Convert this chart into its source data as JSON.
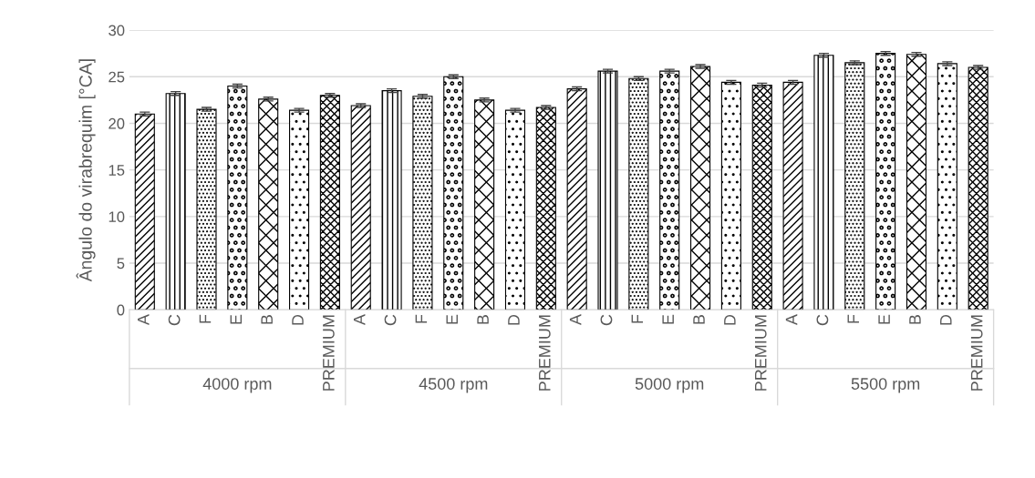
{
  "chart_data": {
    "type": "bar",
    "ylabel": "Ângulo do virabrequim [°CA]",
    "categories": [
      "A",
      "C",
      "F",
      "E",
      "B",
      "D",
      "PREMIUM",
      "A",
      "C",
      "F",
      "E",
      "B",
      "D",
      "PREMIUM",
      "A",
      "C",
      "F",
      "E",
      "B",
      "D",
      "PREMIUM",
      "A",
      "C",
      "F",
      "E",
      "B",
      "D",
      "PREMIUM"
    ],
    "values": [
      21.0,
      23.2,
      21.5,
      24.0,
      22.6,
      21.4,
      23.0,
      21.9,
      23.5,
      22.9,
      25.0,
      22.5,
      21.4,
      21.7,
      23.7,
      25.6,
      24.8,
      25.6,
      26.1,
      24.4,
      24.1,
      24.4,
      27.3,
      26.5,
      27.5,
      27.4,
      26.4,
      26.0
    ],
    "errors": [
      0.2,
      0.2,
      0.2,
      0.2,
      0.2,
      0.2,
      0.2,
      0.2,
      0.2,
      0.2,
      0.2,
      0.2,
      0.2,
      0.2,
      0.2,
      0.2,
      0.2,
      0.2,
      0.2,
      0.2,
      0.2,
      0.2,
      0.2,
      0.2,
      0.2,
      0.2,
      0.2,
      0.2
    ],
    "color": "#000000",
    "annotations": [
      "4000 rpm",
      "4500 rpm",
      "5000 rpm",
      "5500 rpm"
    ],
    "ylim": [
      0,
      30
    ],
    "yticks": [
      0,
      5,
      10,
      15,
      20,
      25,
      30
    ],
    "grid": "y"
  }
}
